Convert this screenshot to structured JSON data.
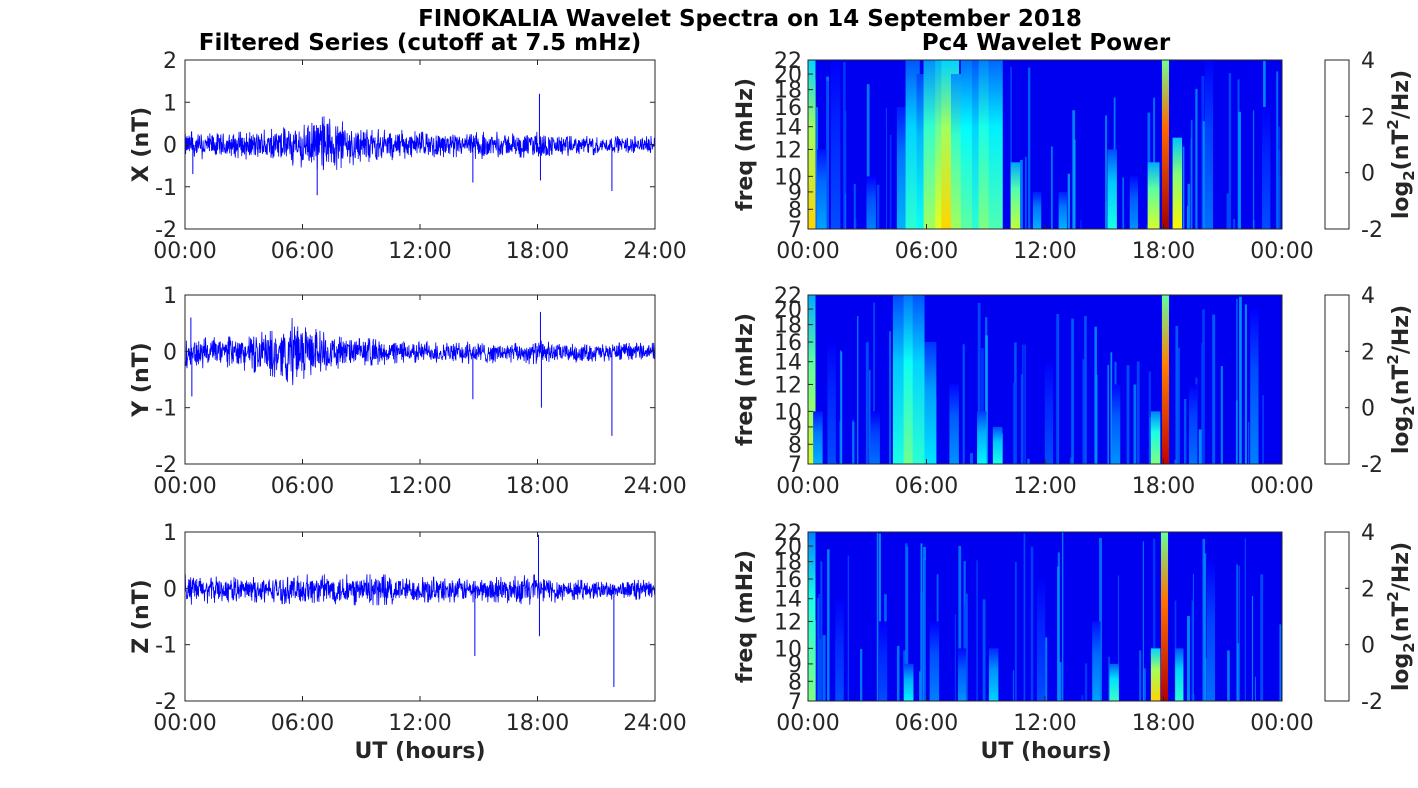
{
  "figure": {
    "title": "FINOKALIA Wavelet Spectra on 14 September 2018",
    "left_column_title": "Filtered Series (cutoff at 7.5 mHz)",
    "right_column_title": "Pc4 Wavelet Power",
    "time_xlabel": "UT (hours)",
    "series_color": "#0000ff"
  },
  "chart_data": [
    {
      "type": "line",
      "component": "X",
      "ylabel": "X (nT)",
      "xlim": [
        0,
        24
      ],
      "ylim": [
        -2,
        2
      ],
      "xticks": [
        "00:00",
        "06:00",
        "12:00",
        "18:00",
        "24:00"
      ],
      "yticks": [
        -2,
        -1,
        0,
        1,
        2
      ],
      "envelope": {
        "hours": [
          0,
          1,
          2,
          3,
          4,
          5,
          6,
          7,
          7.5,
          8,
          9,
          10,
          11,
          12,
          13,
          14,
          15,
          16,
          17,
          18,
          19,
          20,
          21,
          22,
          23,
          24
        ],
        "upper": [
          0.3,
          0.3,
          0.3,
          0.3,
          0.35,
          0.4,
          0.5,
          0.65,
          0.75,
          0.55,
          0.45,
          0.35,
          0.35,
          0.3,
          0.3,
          0.25,
          0.3,
          0.3,
          0.25,
          0.3,
          0.25,
          0.2,
          0.2,
          0.2,
          0.2,
          0.2
        ],
        "lower": [
          -0.35,
          -0.35,
          -0.35,
          -0.35,
          -0.4,
          -0.45,
          -0.55,
          -0.6,
          -0.65,
          -0.55,
          -0.45,
          -0.4,
          -0.35,
          -0.3,
          -0.3,
          -0.3,
          -0.35,
          -0.3,
          -0.3,
          -0.35,
          -0.3,
          -0.25,
          -0.25,
          -0.2,
          -0.2,
          -0.2
        ]
      },
      "spikes": [
        {
          "t": 0.4,
          "v": -0.7
        },
        {
          "t": 6.75,
          "v": -1.2
        },
        {
          "t": 14.7,
          "v": -0.9
        },
        {
          "t": 18.1,
          "v": 1.2
        },
        {
          "t": 18.15,
          "v": -0.85
        },
        {
          "t": 21.8,
          "v": -1.1
        }
      ]
    },
    {
      "type": "line",
      "component": "Y",
      "ylabel": "Y (nT)",
      "xlim": [
        0,
        24
      ],
      "ylim": [
        -2,
        1
      ],
      "xticks": [
        "00:00",
        "06:00",
        "12:00",
        "18:00",
        "24:00"
      ],
      "yticks": [
        -2,
        -1,
        0,
        1
      ],
      "envelope": {
        "hours": [
          0,
          1,
          2,
          3,
          4,
          5,
          5.5,
          6,
          7,
          8,
          9,
          10,
          11,
          12,
          13,
          14,
          15,
          16,
          17,
          18,
          19,
          20,
          21,
          22,
          23,
          24
        ],
        "upper": [
          0.25,
          0.25,
          0.25,
          0.3,
          0.35,
          0.45,
          0.6,
          0.5,
          0.35,
          0.25,
          0.25,
          0.2,
          0.2,
          0.2,
          0.15,
          0.15,
          0.2,
          0.15,
          0.15,
          0.2,
          0.15,
          0.15,
          0.15,
          0.15,
          0.15,
          0.15
        ],
        "lower": [
          -0.3,
          -0.3,
          -0.3,
          -0.35,
          -0.4,
          -0.5,
          -0.6,
          -0.5,
          -0.35,
          -0.3,
          -0.25,
          -0.25,
          -0.2,
          -0.2,
          -0.2,
          -0.2,
          -0.25,
          -0.2,
          -0.2,
          -0.25,
          -0.2,
          -0.2,
          -0.2,
          -0.15,
          -0.15,
          -0.15
        ]
      },
      "spikes": [
        {
          "t": 0.3,
          "v": 0.6
        },
        {
          "t": 0.35,
          "v": -0.8
        },
        {
          "t": 14.7,
          "v": -0.85
        },
        {
          "t": 18.15,
          "v": 0.7
        },
        {
          "t": 18.2,
          "v": -1.0
        },
        {
          "t": 21.8,
          "v": -1.5
        }
      ]
    },
    {
      "type": "line",
      "component": "Z",
      "ylabel": "Z (nT)",
      "xlim": [
        0,
        24
      ],
      "ylim": [
        -2,
        1
      ],
      "xticks": [
        "00:00",
        "06:00",
        "12:00",
        "18:00",
        "24:00"
      ],
      "yticks": [
        -2,
        -1,
        0,
        1
      ],
      "envelope": {
        "hours": [
          0,
          2,
          4,
          6,
          8,
          10,
          12,
          14,
          16,
          18,
          20,
          22,
          24
        ],
        "upper": [
          0.25,
          0.2,
          0.2,
          0.25,
          0.25,
          0.25,
          0.2,
          0.2,
          0.2,
          0.25,
          0.15,
          0.15,
          0.15
        ],
        "lower": [
          -0.3,
          -0.25,
          -0.25,
          -0.3,
          -0.3,
          -0.3,
          -0.25,
          -0.25,
          -0.25,
          -0.3,
          -0.2,
          -0.2,
          -0.2
        ]
      },
      "spikes": [
        {
          "t": 14.8,
          "v": -1.2
        },
        {
          "t": 18.05,
          "v": 0.95
        },
        {
          "t": 18.1,
          "v": -0.85
        },
        {
          "t": 21.9,
          "v": -1.75
        }
      ]
    },
    {
      "type": "heatmap",
      "component": "X",
      "ylabel": "freq (mHz)",
      "xticks": [
        "00:00",
        "06:00",
        "12:00",
        "18:00",
        "00:00"
      ],
      "yticks": [
        7,
        8,
        9,
        10,
        12,
        14,
        16,
        18,
        20,
        22
      ],
      "ylim": [
        7,
        22
      ],
      "y_scale": "log",
      "colorbar": {
        "label": "log2(nT2/Hz)",
        "ticks": [
          -2,
          0,
          2,
          4
        ],
        "range": [
          -2,
          4
        ],
        "colormap": "jet"
      },
      "bursts": [
        {
          "t": 0.2,
          "w": 0.06,
          "fmax": 22,
          "level": 2.0
        },
        {
          "t": 0.7,
          "w": 0.08,
          "fmax": 12,
          "level": -0.3
        },
        {
          "t": 1.4,
          "w": 0.08,
          "fmax": 22,
          "level": -0.8
        },
        {
          "t": 3.2,
          "w": 0.08,
          "fmax": 10,
          "level": -0.5
        },
        {
          "t": 4.8,
          "w": 0.1,
          "fmax": 16,
          "level": -0.2
        },
        {
          "t": 5.3,
          "w": 0.12,
          "fmax": 22,
          "level": 0.5
        },
        {
          "t": 5.8,
          "w": 0.1,
          "fmax": 20,
          "level": 0.3
        },
        {
          "t": 6.3,
          "w": 0.15,
          "fmax": 22,
          "level": 1.2
        },
        {
          "t": 6.8,
          "w": 0.12,
          "fmax": 22,
          "level": 1.6
        },
        {
          "t": 7.2,
          "w": 0.15,
          "fmax": 22,
          "level": 2.0
        },
        {
          "t": 7.6,
          "w": 0.12,
          "fmax": 20,
          "level": 1.2
        },
        {
          "t": 8.1,
          "w": 0.12,
          "fmax": 22,
          "level": 0.8
        },
        {
          "t": 8.6,
          "w": 0.1,
          "fmax": 22,
          "level": 0.5
        },
        {
          "t": 9.0,
          "w": 0.12,
          "fmax": 22,
          "level": 1.0
        },
        {
          "t": 9.5,
          "w": 0.12,
          "fmax": 22,
          "level": 0.7
        },
        {
          "t": 10.5,
          "w": 0.08,
          "fmax": 11,
          "level": 1.4
        },
        {
          "t": 11.6,
          "w": 0.07,
          "fmax": 9,
          "level": -0.2
        },
        {
          "t": 12.9,
          "w": 0.07,
          "fmax": 9,
          "level": -0.2
        },
        {
          "t": 15.4,
          "w": 0.08,
          "fmax": 12,
          "level": 0.4
        },
        {
          "t": 16.5,
          "w": 0.07,
          "fmax": 10,
          "level": -0.4
        },
        {
          "t": 17.5,
          "w": 0.1,
          "fmax": 11,
          "level": 1.5
        },
        {
          "t": 18.1,
          "w": 0.06,
          "fmax": 22,
          "level": 3.8
        },
        {
          "t": 18.7,
          "w": 0.08,
          "fmax": 13,
          "level": 1.8
        },
        {
          "t": 20.3,
          "w": 0.07,
          "fmax": 22,
          "level": -0.6
        },
        {
          "t": 23.2,
          "w": 0.07,
          "fmax": 16,
          "level": -0.8
        }
      ]
    },
    {
      "type": "heatmap",
      "component": "Y",
      "ylabel": "freq (mHz)",
      "xticks": [
        "00:00",
        "06:00",
        "12:00",
        "18:00",
        "00:00"
      ],
      "yticks": [
        7,
        8,
        9,
        10,
        12,
        14,
        16,
        18,
        20,
        22
      ],
      "ylim": [
        7,
        22
      ],
      "y_scale": "log",
      "colorbar": {
        "label": "log2(nT2/Hz)",
        "ticks": [
          -2,
          0,
          2,
          4
        ],
        "range": [
          -2,
          4
        ],
        "colormap": "jet"
      },
      "bursts": [
        {
          "t": 0.2,
          "w": 0.06,
          "fmax": 22,
          "level": 1.5
        },
        {
          "t": 0.5,
          "w": 0.08,
          "fmax": 10,
          "level": -0.2
        },
        {
          "t": 1.2,
          "w": 0.07,
          "fmax": 16,
          "level": -0.8
        },
        {
          "t": 3.4,
          "w": 0.08,
          "fmax": 10,
          "level": -0.6
        },
        {
          "t": 4.6,
          "w": 0.1,
          "fmax": 22,
          "level": 0.4
        },
        {
          "t": 5.2,
          "w": 0.12,
          "fmax": 22,
          "level": 0.9
        },
        {
          "t": 5.6,
          "w": 0.1,
          "fmax": 22,
          "level": 0.5
        },
        {
          "t": 6.2,
          "w": 0.1,
          "fmax": 16,
          "level": 0.1
        },
        {
          "t": 7.4,
          "w": 0.08,
          "fmax": 12,
          "level": -0.4
        },
        {
          "t": 8.8,
          "w": 0.08,
          "fmax": 10,
          "level": 0.2
        },
        {
          "t": 9.6,
          "w": 0.08,
          "fmax": 9,
          "level": 0.4
        },
        {
          "t": 12.2,
          "w": 0.07,
          "fmax": 14,
          "level": -0.8
        },
        {
          "t": 15.6,
          "w": 0.07,
          "fmax": 12,
          "level": -0.4
        },
        {
          "t": 17.6,
          "w": 0.08,
          "fmax": 10,
          "level": 1.0
        },
        {
          "t": 18.1,
          "w": 0.06,
          "fmax": 22,
          "level": 3.6
        },
        {
          "t": 19.5,
          "w": 0.07,
          "fmax": 12,
          "level": -0.6
        },
        {
          "t": 22.6,
          "w": 0.07,
          "fmax": 20,
          "level": -0.5
        }
      ]
    },
    {
      "type": "heatmap",
      "component": "Z",
      "ylabel": "freq (mHz)",
      "xticks": [
        "00:00",
        "06:00",
        "12:00",
        "18:00",
        "00:00"
      ],
      "yticks": [
        7,
        8,
        9,
        10,
        12,
        14,
        16,
        18,
        20,
        22
      ],
      "ylim": [
        7,
        22
      ],
      "y_scale": "log",
      "colorbar": {
        "label": "log2(nT2/Hz)",
        "ticks": [
          -2,
          0,
          2,
          4
        ],
        "range": [
          -2,
          4
        ],
        "colormap": "jet"
      },
      "bursts": [
        {
          "t": 0.2,
          "w": 0.06,
          "fmax": 22,
          "level": 1.0
        },
        {
          "t": 1.6,
          "w": 0.07,
          "fmax": 14,
          "level": -0.8
        },
        {
          "t": 3.8,
          "w": 0.07,
          "fmax": 12,
          "level": -0.8
        },
        {
          "t": 5.1,
          "w": 0.08,
          "fmax": 9,
          "level": 0.2
        },
        {
          "t": 6.4,
          "w": 0.08,
          "fmax": 12,
          "level": -0.5
        },
        {
          "t": 7.8,
          "w": 0.07,
          "fmax": 10,
          "level": -0.4
        },
        {
          "t": 9.4,
          "w": 0.08,
          "fmax": 10,
          "level": 0.0
        },
        {
          "t": 11.8,
          "w": 0.07,
          "fmax": 16,
          "level": -0.8
        },
        {
          "t": 14.6,
          "w": 0.07,
          "fmax": 12,
          "level": -0.3
        },
        {
          "t": 15.5,
          "w": 0.08,
          "fmax": 9,
          "level": 0.6
        },
        {
          "t": 17.6,
          "w": 0.08,
          "fmax": 10,
          "level": 2.0
        },
        {
          "t": 18.05,
          "w": 0.06,
          "fmax": 22,
          "level": 3.7
        },
        {
          "t": 18.8,
          "w": 0.07,
          "fmax": 10,
          "level": 0.5
        },
        {
          "t": 20.4,
          "w": 0.07,
          "fmax": 18,
          "level": -0.6
        }
      ]
    }
  ]
}
